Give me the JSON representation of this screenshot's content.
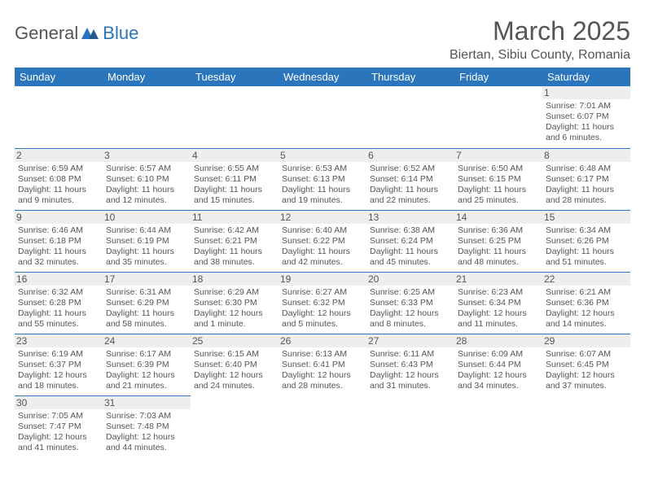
{
  "brand": {
    "part1": "General",
    "part2": "Blue"
  },
  "title": "March 2025",
  "location": "Biertan, Sibiu County, Romania",
  "colors": {
    "header_bg": "#2a75bb",
    "header_text": "#ffffff",
    "border": "#2a75bb",
    "daynum_bg": "#eeeeee",
    "body_text": "#555555",
    "page_bg": "#ffffff"
  },
  "day_headers": [
    "Sunday",
    "Monday",
    "Tuesday",
    "Wednesday",
    "Thursday",
    "Friday",
    "Saturday"
  ],
  "weeks": [
    [
      null,
      null,
      null,
      null,
      null,
      null,
      {
        "n": "1",
        "sunrise": "Sunrise: 7:01 AM",
        "sunset": "Sunset: 6:07 PM",
        "daylight": "Daylight: 11 hours and 6 minutes."
      }
    ],
    [
      {
        "n": "2",
        "sunrise": "Sunrise: 6:59 AM",
        "sunset": "Sunset: 6:08 PM",
        "daylight": "Daylight: 11 hours and 9 minutes."
      },
      {
        "n": "3",
        "sunrise": "Sunrise: 6:57 AM",
        "sunset": "Sunset: 6:10 PM",
        "daylight": "Daylight: 11 hours and 12 minutes."
      },
      {
        "n": "4",
        "sunrise": "Sunrise: 6:55 AM",
        "sunset": "Sunset: 6:11 PM",
        "daylight": "Daylight: 11 hours and 15 minutes."
      },
      {
        "n": "5",
        "sunrise": "Sunrise: 6:53 AM",
        "sunset": "Sunset: 6:13 PM",
        "daylight": "Daylight: 11 hours and 19 minutes."
      },
      {
        "n": "6",
        "sunrise": "Sunrise: 6:52 AM",
        "sunset": "Sunset: 6:14 PM",
        "daylight": "Daylight: 11 hours and 22 minutes."
      },
      {
        "n": "7",
        "sunrise": "Sunrise: 6:50 AM",
        "sunset": "Sunset: 6:15 PM",
        "daylight": "Daylight: 11 hours and 25 minutes."
      },
      {
        "n": "8",
        "sunrise": "Sunrise: 6:48 AM",
        "sunset": "Sunset: 6:17 PM",
        "daylight": "Daylight: 11 hours and 28 minutes."
      }
    ],
    [
      {
        "n": "9",
        "sunrise": "Sunrise: 6:46 AM",
        "sunset": "Sunset: 6:18 PM",
        "daylight": "Daylight: 11 hours and 32 minutes."
      },
      {
        "n": "10",
        "sunrise": "Sunrise: 6:44 AM",
        "sunset": "Sunset: 6:19 PM",
        "daylight": "Daylight: 11 hours and 35 minutes."
      },
      {
        "n": "11",
        "sunrise": "Sunrise: 6:42 AM",
        "sunset": "Sunset: 6:21 PM",
        "daylight": "Daylight: 11 hours and 38 minutes."
      },
      {
        "n": "12",
        "sunrise": "Sunrise: 6:40 AM",
        "sunset": "Sunset: 6:22 PM",
        "daylight": "Daylight: 11 hours and 42 minutes."
      },
      {
        "n": "13",
        "sunrise": "Sunrise: 6:38 AM",
        "sunset": "Sunset: 6:24 PM",
        "daylight": "Daylight: 11 hours and 45 minutes."
      },
      {
        "n": "14",
        "sunrise": "Sunrise: 6:36 AM",
        "sunset": "Sunset: 6:25 PM",
        "daylight": "Daylight: 11 hours and 48 minutes."
      },
      {
        "n": "15",
        "sunrise": "Sunrise: 6:34 AM",
        "sunset": "Sunset: 6:26 PM",
        "daylight": "Daylight: 11 hours and 51 minutes."
      }
    ],
    [
      {
        "n": "16",
        "sunrise": "Sunrise: 6:32 AM",
        "sunset": "Sunset: 6:28 PM",
        "daylight": "Daylight: 11 hours and 55 minutes."
      },
      {
        "n": "17",
        "sunrise": "Sunrise: 6:31 AM",
        "sunset": "Sunset: 6:29 PM",
        "daylight": "Daylight: 11 hours and 58 minutes."
      },
      {
        "n": "18",
        "sunrise": "Sunrise: 6:29 AM",
        "sunset": "Sunset: 6:30 PM",
        "daylight": "Daylight: 12 hours and 1 minute."
      },
      {
        "n": "19",
        "sunrise": "Sunrise: 6:27 AM",
        "sunset": "Sunset: 6:32 PM",
        "daylight": "Daylight: 12 hours and 5 minutes."
      },
      {
        "n": "20",
        "sunrise": "Sunrise: 6:25 AM",
        "sunset": "Sunset: 6:33 PM",
        "daylight": "Daylight: 12 hours and 8 minutes."
      },
      {
        "n": "21",
        "sunrise": "Sunrise: 6:23 AM",
        "sunset": "Sunset: 6:34 PM",
        "daylight": "Daylight: 12 hours and 11 minutes."
      },
      {
        "n": "22",
        "sunrise": "Sunrise: 6:21 AM",
        "sunset": "Sunset: 6:36 PM",
        "daylight": "Daylight: 12 hours and 14 minutes."
      }
    ],
    [
      {
        "n": "23",
        "sunrise": "Sunrise: 6:19 AM",
        "sunset": "Sunset: 6:37 PM",
        "daylight": "Daylight: 12 hours and 18 minutes."
      },
      {
        "n": "24",
        "sunrise": "Sunrise: 6:17 AM",
        "sunset": "Sunset: 6:39 PM",
        "daylight": "Daylight: 12 hours and 21 minutes."
      },
      {
        "n": "25",
        "sunrise": "Sunrise: 6:15 AM",
        "sunset": "Sunset: 6:40 PM",
        "daylight": "Daylight: 12 hours and 24 minutes."
      },
      {
        "n": "26",
        "sunrise": "Sunrise: 6:13 AM",
        "sunset": "Sunset: 6:41 PM",
        "daylight": "Daylight: 12 hours and 28 minutes."
      },
      {
        "n": "27",
        "sunrise": "Sunrise: 6:11 AM",
        "sunset": "Sunset: 6:43 PM",
        "daylight": "Daylight: 12 hours and 31 minutes."
      },
      {
        "n": "28",
        "sunrise": "Sunrise: 6:09 AM",
        "sunset": "Sunset: 6:44 PM",
        "daylight": "Daylight: 12 hours and 34 minutes."
      },
      {
        "n": "29",
        "sunrise": "Sunrise: 6:07 AM",
        "sunset": "Sunset: 6:45 PM",
        "daylight": "Daylight: 12 hours and 37 minutes."
      }
    ],
    [
      {
        "n": "30",
        "sunrise": "Sunrise: 7:05 AM",
        "sunset": "Sunset: 7:47 PM",
        "daylight": "Daylight: 12 hours and 41 minutes."
      },
      {
        "n": "31",
        "sunrise": "Sunrise: 7:03 AM",
        "sunset": "Sunset: 7:48 PM",
        "daylight": "Daylight: 12 hours and 44 minutes."
      },
      null,
      null,
      null,
      null,
      null
    ]
  ]
}
